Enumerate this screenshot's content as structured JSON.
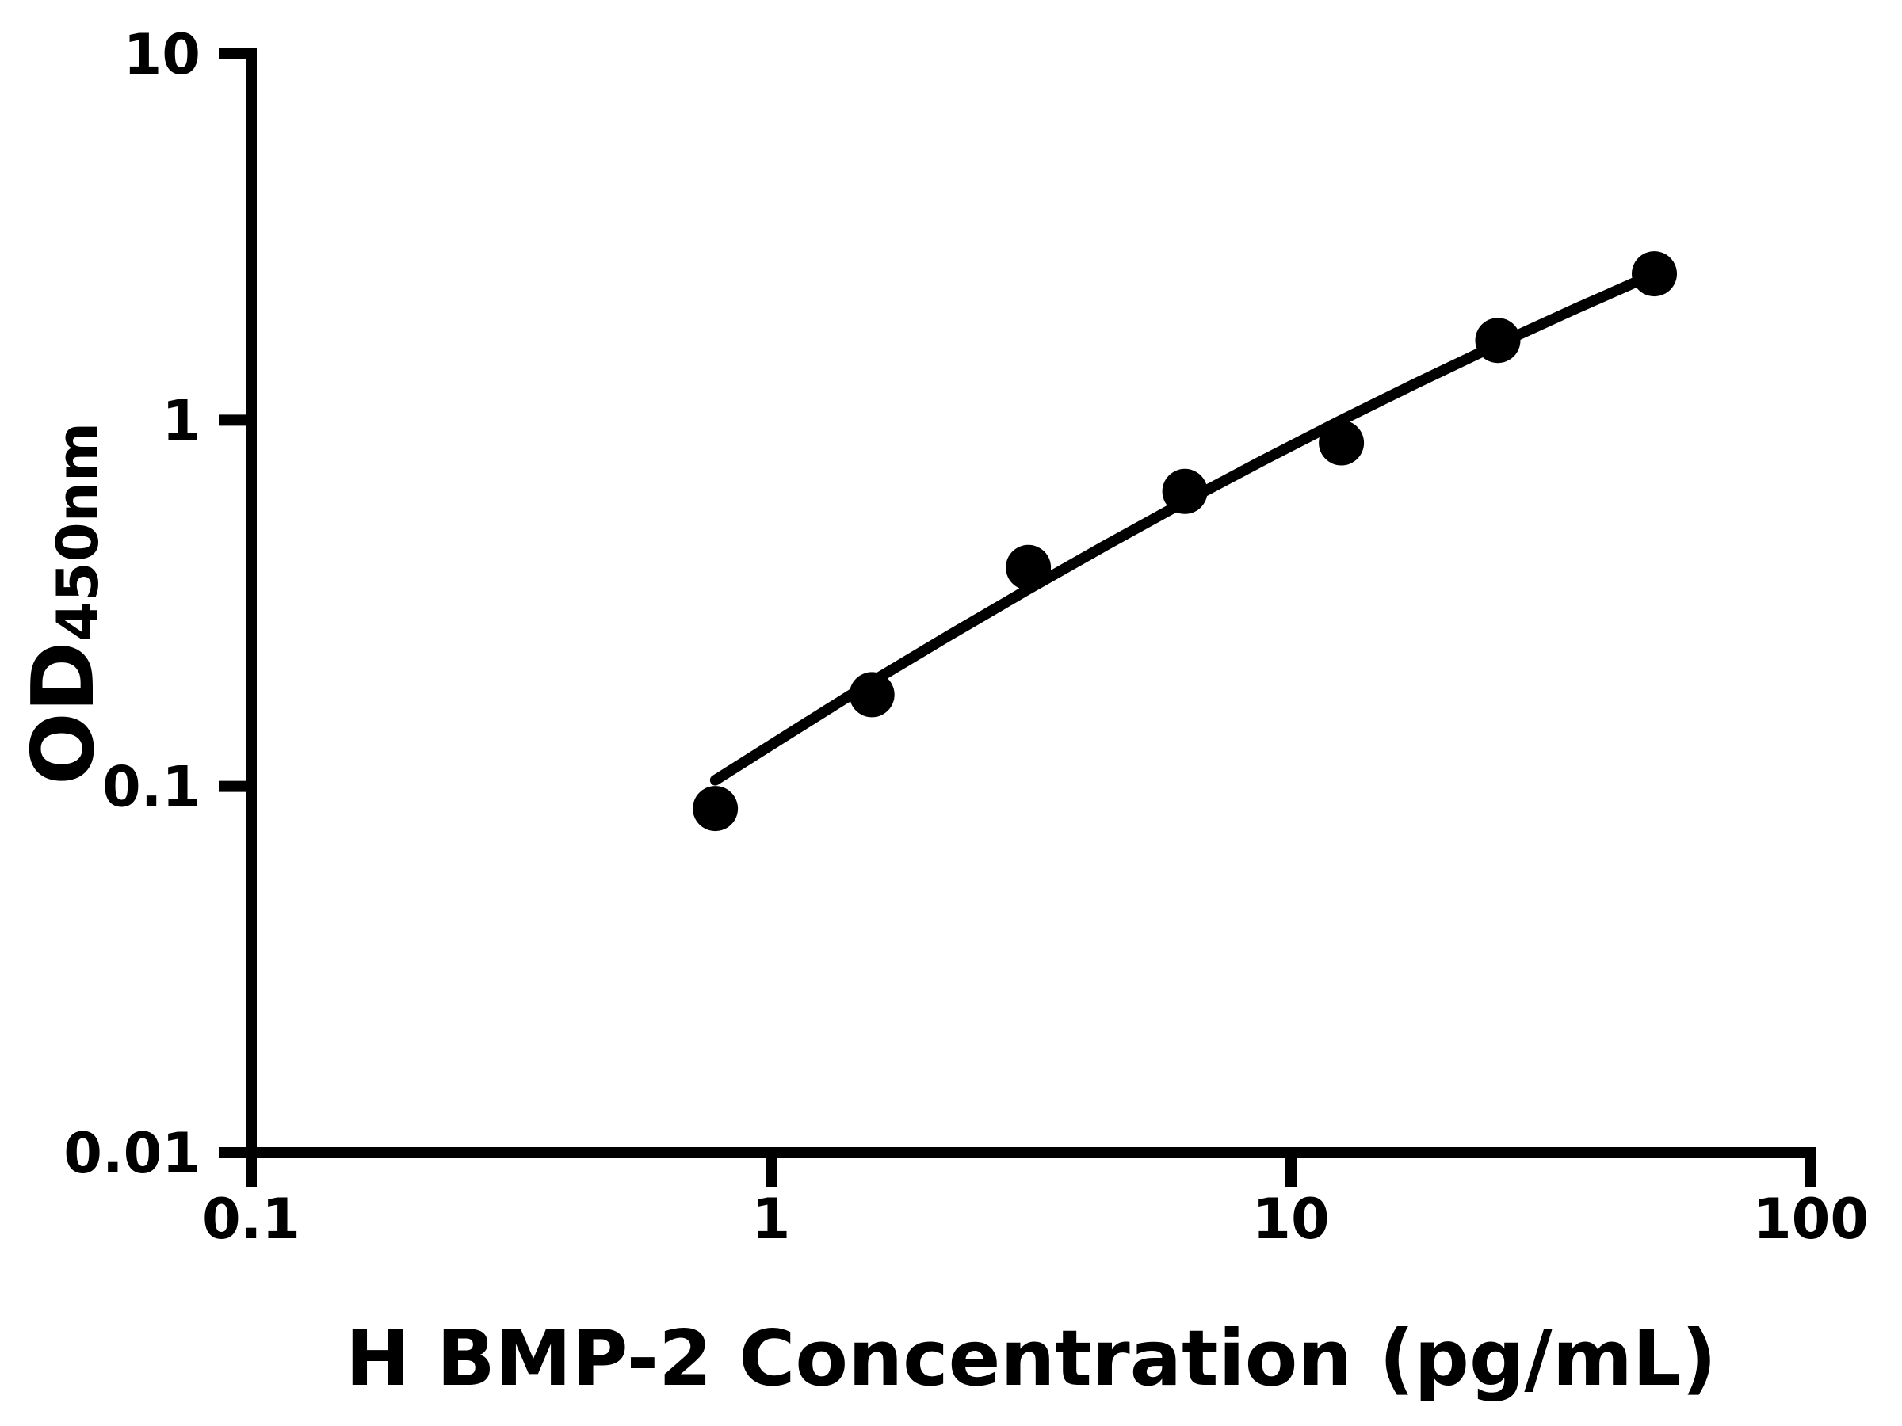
{
  "figure": {
    "background": "#ffffff",
    "ink_color": "#000000"
  },
  "chart_data": {
    "type": "scatter",
    "title": "",
    "xlabel": "H BMP-2 Concentration (pg/mL)",
    "ylabel": "OD",
    "ylabel_subscript": "450nm",
    "xscale": "log",
    "yscale": "log",
    "xlim": [
      0.1,
      100
    ],
    "ylim": [
      0.01,
      10
    ],
    "grid": false,
    "legend_position": "none",
    "x_ticks": [
      0.1,
      1,
      10,
      100
    ],
    "y_ticks": [
      0.01,
      0.1,
      1,
      10
    ],
    "x_tick_labels": [
      "0.1",
      "1",
      "10",
      "100"
    ],
    "y_tick_labels": [
      "0.01",
      "0.1",
      "1",
      "10"
    ],
    "marker_color": "#000000",
    "line_color": "#000000",
    "series": [
      {
        "name": "standard-data-points",
        "type": "scatter",
        "marker": "filled-circle",
        "x": [
          0.781,
          1.563,
          3.125,
          6.25,
          12.5,
          25,
          50
        ],
        "y": [
          0.087,
          0.178,
          0.396,
          0.639,
          0.867,
          1.651,
          2.51
        ]
      },
      {
        "name": "fitted-standard-curve",
        "type": "line",
        "x": [
          0.781,
          1.097,
          1.552,
          2.196,
          3.108,
          4.398,
          6.224,
          8.806,
          12.46,
          17.64,
          24.97,
          35.34,
          50.0
        ],
        "y": [
          0.104,
          0.141,
          0.192,
          0.258,
          0.344,
          0.455,
          0.597,
          0.775,
          0.998,
          1.273,
          1.61,
          2.018,
          2.507
        ]
      }
    ]
  }
}
